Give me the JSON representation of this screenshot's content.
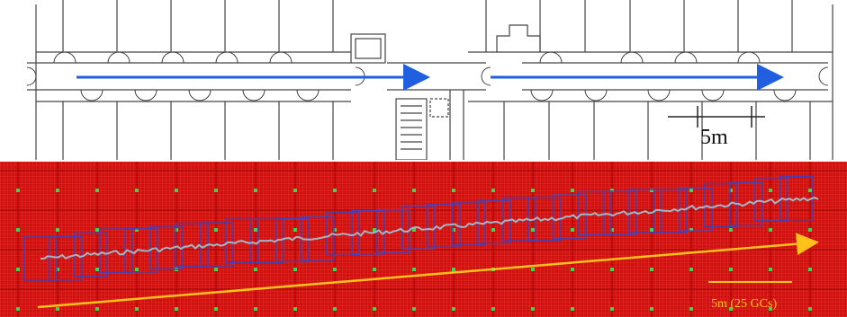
{
  "floorplan": {
    "scale_label": "5m",
    "path_color": "#1f5fe0"
  },
  "grid_map": {
    "scale_label": "5m (25 GCs)",
    "background_color": "#d40f0f",
    "arrow_color": "#ffc21a",
    "trajectory_color": "#9fb7c6",
    "box_color": "#4a3fb0",
    "marker_color": "#3ed64a"
  }
}
